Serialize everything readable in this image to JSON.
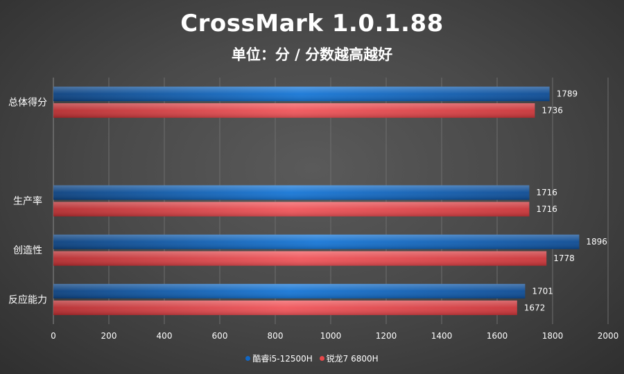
{
  "chart_data": {
    "type": "bar",
    "orientation": "horizontal",
    "title": "CrossMark 1.0.1.88",
    "subtitle": "单位：分 / 分数越高越好",
    "categories": [
      "总体得分",
      "",
      "生产率",
      "创造性",
      "反应能力"
    ],
    "series": [
      {
        "name": "酷睿i5-12500H",
        "color": "#1167c4",
        "values": [
          1789,
          null,
          1716,
          1896,
          1701
        ]
      },
      {
        "name": "锐龙7 6800H",
        "color": "#e8484a",
        "values": [
          1736,
          null,
          1716,
          1778,
          1672
        ]
      }
    ],
    "xlim": [
      0,
      2000
    ],
    "xticks": [
      0,
      200,
      400,
      600,
      800,
      1000,
      1200,
      1400,
      1600,
      1800,
      2000
    ],
    "grid": true,
    "legend_position": "bottom"
  }
}
